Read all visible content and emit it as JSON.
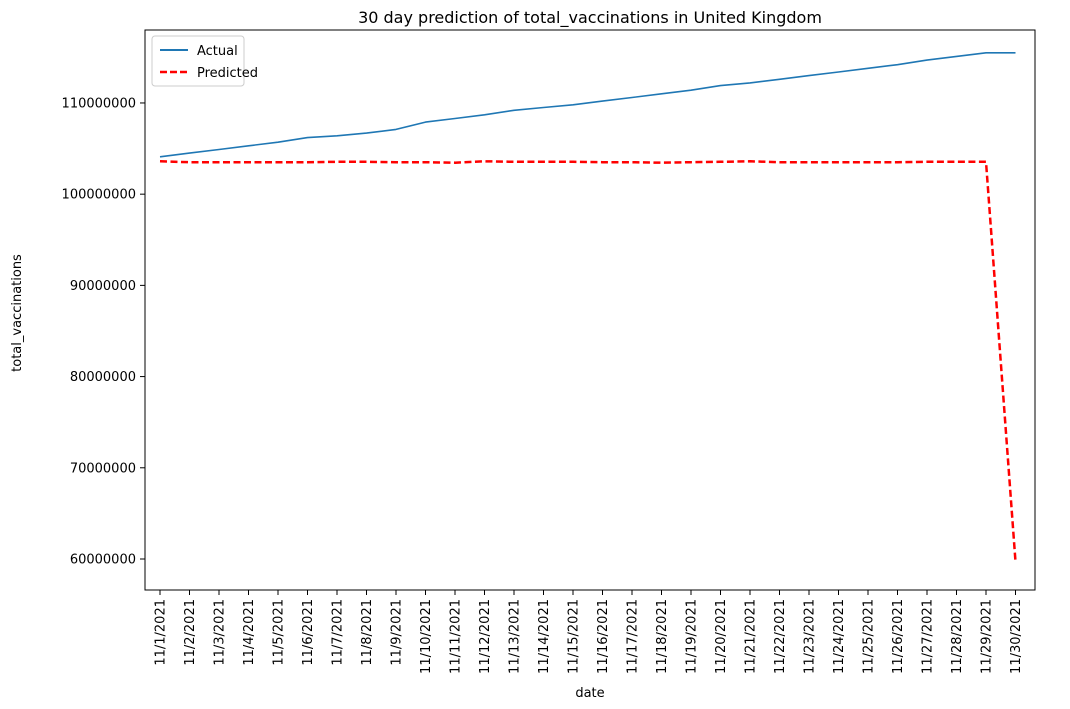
{
  "chart_data": {
    "type": "line",
    "title": "30 day prediction of total_vaccinations in United Kingdom",
    "xlabel": "date",
    "ylabel": "total_vaccinations",
    "x": [
      "11/1/2021",
      "11/2/2021",
      "11/3/2021",
      "11/4/2021",
      "11/5/2021",
      "11/6/2021",
      "11/7/2021",
      "11/8/2021",
      "11/9/2021",
      "11/10/2021",
      "11/11/2021",
      "11/12/2021",
      "11/13/2021",
      "11/14/2021",
      "11/15/2021",
      "11/16/2021",
      "11/17/2021",
      "11/18/2021",
      "11/19/2021",
      "11/20/2021",
      "11/21/2021",
      "11/22/2021",
      "11/23/2021",
      "11/24/2021",
      "11/25/2021",
      "11/26/2021",
      "11/27/2021",
      "11/28/2021",
      "11/29/2021",
      "11/30/2021"
    ],
    "yticks": [
      60000000,
      70000000,
      80000000,
      90000000,
      100000000,
      110000000
    ],
    "ytick_labels": [
      "60000000",
      "70000000",
      "80000000",
      "90000000",
      "100000000",
      "110000000"
    ],
    "ylim": [
      56600000,
      118000000
    ],
    "legend": "top-left",
    "grid": false,
    "series": [
      {
        "name": "Actual",
        "color": "#1f77b4",
        "style": "solid",
        "values": [
          104100000,
          104500000,
          104900000,
          105300000,
          105700000,
          106200000,
          106400000,
          106700000,
          107100000,
          107900000,
          108300000,
          108700000,
          109200000,
          109500000,
          109800000,
          110200000,
          110600000,
          111000000,
          111400000,
          111900000,
          112200000,
          112600000,
          113000000,
          113400000,
          113800000,
          114200000,
          114700000,
          115100000,
          115500000,
          115500000
        ]
      },
      {
        "name": "Predicted",
        "color": "#ff0000",
        "style": "dashed",
        "values": [
          103600000,
          103500000,
          103500000,
          103500000,
          103500000,
          103500000,
          103550000,
          103550000,
          103500000,
          103500000,
          103450000,
          103600000,
          103550000,
          103550000,
          103550000,
          103500000,
          103500000,
          103450000,
          103500000,
          103550000,
          103600000,
          103500000,
          103500000,
          103500000,
          103500000,
          103500000,
          103550000,
          103550000,
          103550000,
          59700000
        ]
      }
    ]
  }
}
